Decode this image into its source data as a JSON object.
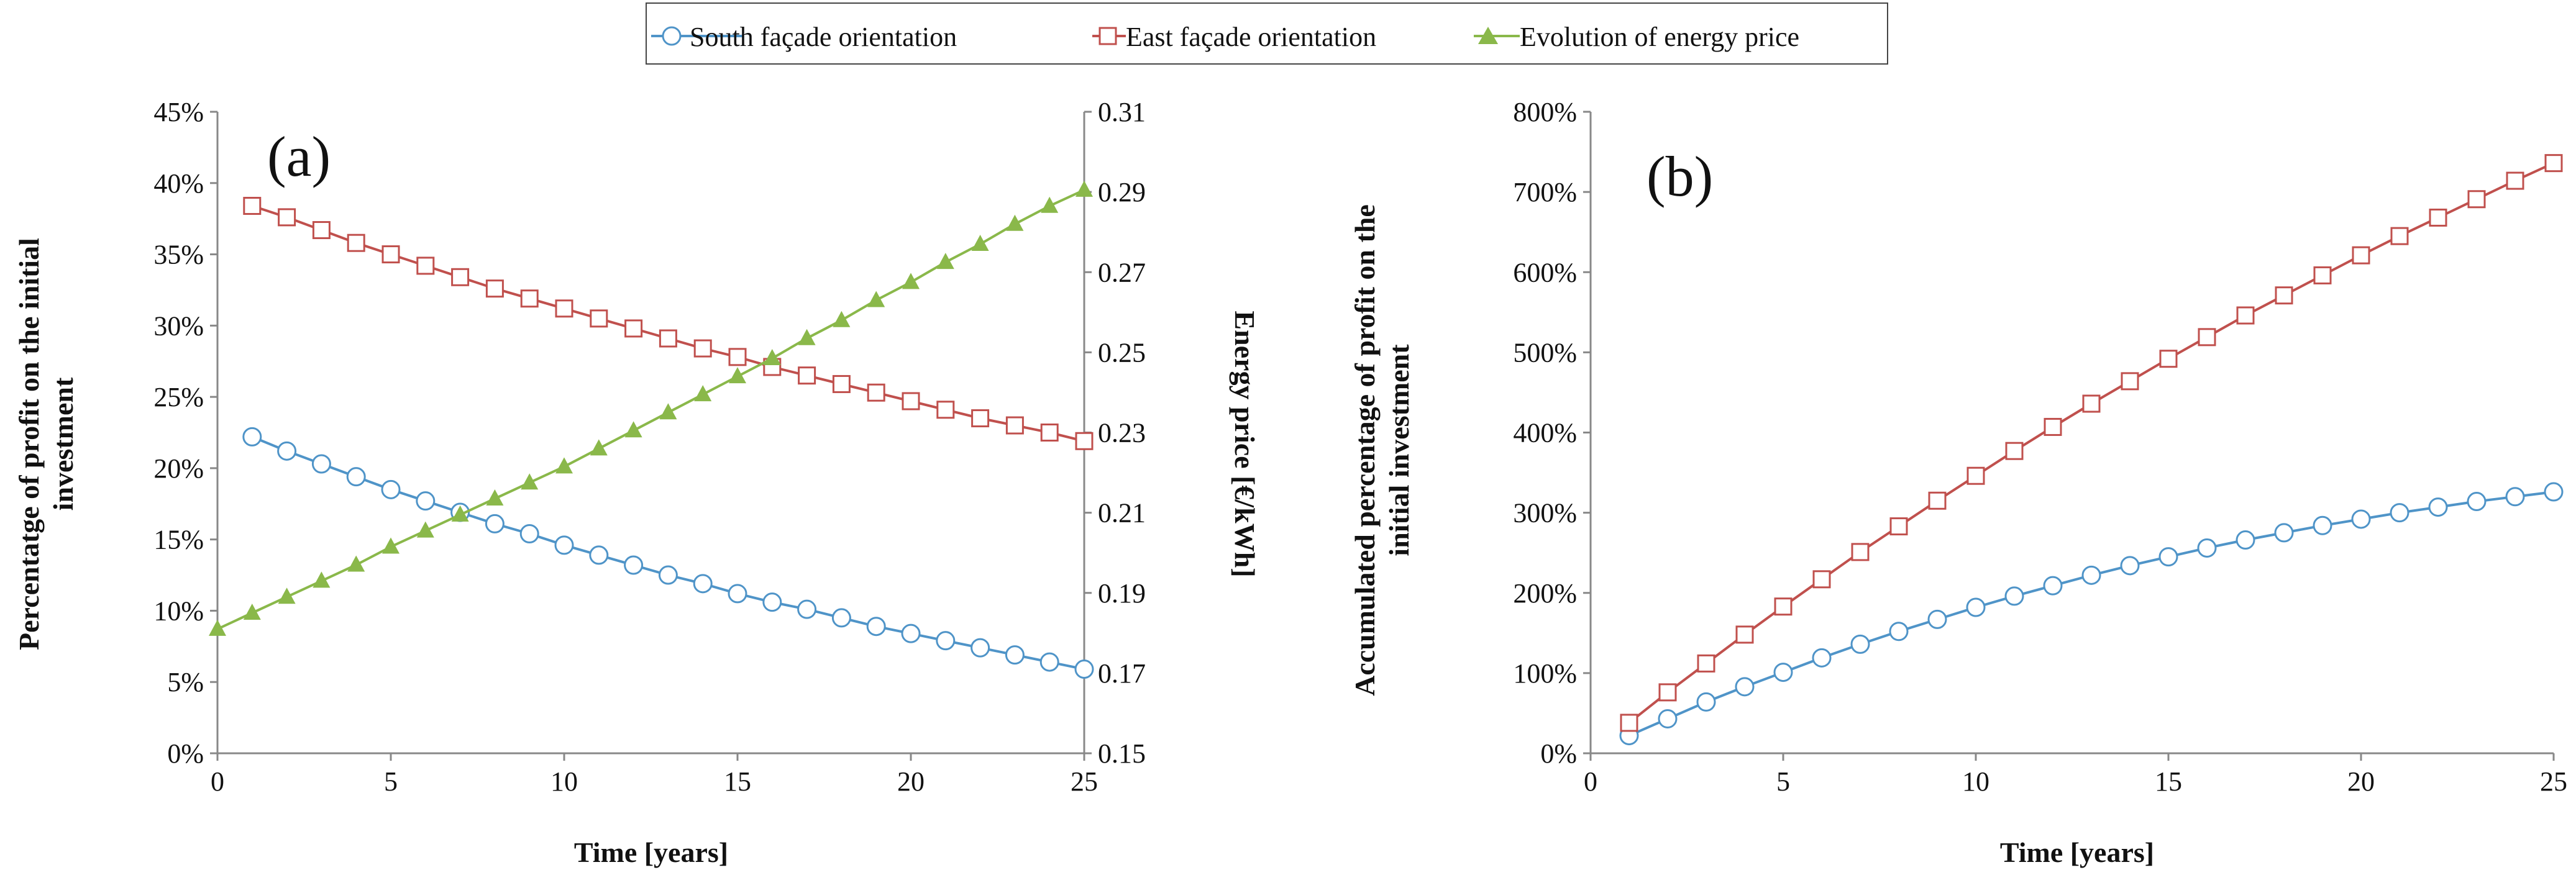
{
  "legend": {
    "south": "South façade orientation",
    "east": "East façade orientation",
    "price": "Evolution of energy price"
  },
  "colors": {
    "south": "#4f94c8",
    "east": "#c0504d",
    "price": "#8ab84a",
    "axis": "#888888"
  },
  "chart_data": [
    {
      "type": "line",
      "panel_label": "(a)",
      "xlabel": "Time [years]",
      "ylabel": [
        "Percentatge of profit on the initial",
        "investment"
      ],
      "y2label": "Energy price [€/kWh]",
      "xlim": [
        0,
        25
      ],
      "ylim": [
        0,
        45
      ],
      "y2lim": [
        0.15,
        0.31
      ],
      "xticks": [
        "0",
        "5",
        "10",
        "15",
        "20",
        "25"
      ],
      "yticks": [
        "0%",
        "5%",
        "10%",
        "15%",
        "20%",
        "25%",
        "30%",
        "35%",
        "40%",
        "45%"
      ],
      "y2ticks": [
        "0.15",
        "0.17",
        "0.19",
        "0.21",
        "0.23",
        "0.25",
        "0.27",
        "0.29",
        "0.31"
      ],
      "series": [
        {
          "key": "south",
          "name": "South façade orientation",
          "axis": "left",
          "marker": "circle",
          "x": [
            1,
            2,
            3,
            4,
            5,
            6,
            7,
            8,
            9,
            10,
            11,
            12,
            13,
            14,
            15,
            16,
            17,
            18,
            19,
            20,
            21,
            22,
            23,
            24,
            25
          ],
          "values": [
            22.2,
            21.2,
            20.3,
            19.4,
            18.5,
            17.7,
            16.9,
            16.1,
            15.4,
            14.6,
            13.9,
            13.2,
            12.5,
            11.9,
            11.2,
            10.6,
            10.1,
            9.5,
            8.9,
            8.4,
            7.9,
            7.4,
            6.9,
            6.4,
            5.9
          ]
        },
        {
          "key": "east",
          "name": "East façade orientation",
          "axis": "left",
          "marker": "square",
          "x": [
            1,
            2,
            3,
            4,
            5,
            6,
            7,
            8,
            9,
            10,
            11,
            12,
            13,
            14,
            15,
            16,
            17,
            18,
            19,
            20,
            21,
            22,
            23,
            24,
            25
          ],
          "values": [
            38.4,
            37.6,
            36.7,
            35.8,
            35.0,
            34.2,
            33.4,
            32.6,
            31.9,
            31.2,
            30.5,
            29.8,
            29.1,
            28.4,
            27.8,
            27.1,
            26.5,
            25.9,
            25.3,
            24.7,
            24.1,
            23.5,
            23.0,
            22.5,
            21.9
          ]
        },
        {
          "key": "price",
          "name": "Evolution of energy price",
          "axis": "right",
          "marker": "triangle",
          "x": [
            0,
            1,
            2,
            3,
            4,
            5,
            6,
            7,
            8,
            9,
            10,
            11,
            12,
            13,
            14,
            15,
            16,
            17,
            18,
            19,
            20,
            21,
            22,
            23,
            24,
            25
          ],
          "values": [
            0.181,
            0.185,
            0.189,
            0.193,
            0.197,
            0.2015,
            0.2055,
            0.2095,
            0.2135,
            0.2175,
            0.2215,
            0.226,
            0.2305,
            0.235,
            0.2395,
            0.244,
            0.2485,
            0.2535,
            0.258,
            0.263,
            0.2675,
            0.2725,
            0.277,
            0.282,
            0.2865,
            0.2905
          ]
        }
      ]
    },
    {
      "type": "line",
      "panel_label": "(b)",
      "xlabel": "Time [years]",
      "ylabel": [
        "Accumulated percentage of profit on the",
        "initial investment"
      ],
      "xlim": [
        0,
        25
      ],
      "ylim": [
        0,
        800
      ],
      "xticks": [
        "0",
        "5",
        "10",
        "15",
        "20",
        "25"
      ],
      "yticks": [
        "0%",
        "100%",
        "200%",
        "300%",
        "400%",
        "500%",
        "600%",
        "700%",
        "800%"
      ],
      "series": [
        {
          "key": "south",
          "name": "South façade orientation",
          "marker": "circle",
          "x": [
            1,
            2,
            3,
            4,
            5,
            6,
            7,
            8,
            9,
            10,
            11,
            12,
            13,
            14,
            15,
            16,
            17,
            18,
            19,
            20,
            21,
            22,
            23,
            24,
            25
          ],
          "values": [
            22,
            43,
            64,
            83,
            101,
            119,
            136,
            152,
            167,
            182,
            196,
            209,
            222,
            234,
            245,
            256,
            266,
            275,
            284,
            292,
            300,
            307,
            314,
            320,
            326
          ]
        },
        {
          "key": "east",
          "name": "East façade orientation",
          "marker": "square",
          "x": [
            1,
            2,
            3,
            4,
            5,
            6,
            7,
            8,
            9,
            10,
            11,
            12,
            13,
            14,
            15,
            16,
            17,
            18,
            19,
            20,
            21,
            22,
            23,
            24,
            25
          ],
          "values": [
            38,
            76,
            112,
            148,
            183,
            217,
            251,
            283,
            315,
            346,
            377,
            407,
            436,
            464,
            492,
            519,
            546,
            571,
            596,
            621,
            645,
            668,
            691,
            714,
            736
          ]
        }
      ]
    }
  ]
}
